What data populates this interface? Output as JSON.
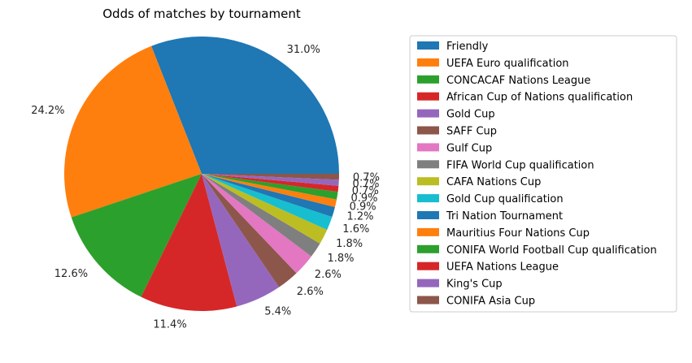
{
  "chart_data": {
    "type": "pie",
    "title": "Odds of matches by tournament",
    "start_angle_deg": 0,
    "direction": "counterclockwise",
    "legend_placement": "right",
    "slices": [
      {
        "label": "Friendly",
        "value": 31.0,
        "pct_label": "31.0%",
        "color": "#1f77b4"
      },
      {
        "label": "UEFA Euro qualification",
        "value": 24.2,
        "pct_label": "24.2%",
        "color": "#ff7f0e"
      },
      {
        "label": "CONCACAF Nations League",
        "value": 12.6,
        "pct_label": "12.6%",
        "color": "#2ca02c"
      },
      {
        "label": "African Cup of Nations qualification",
        "value": 11.4,
        "pct_label": "11.4%",
        "color": "#d62728"
      },
      {
        "label": "Gold Cup",
        "value": 5.4,
        "pct_label": "5.4%",
        "color": "#9467bd"
      },
      {
        "label": "SAFF Cup",
        "value": 2.6,
        "pct_label": "2.6%",
        "color": "#8c564b"
      },
      {
        "label": "Gulf Cup",
        "value": 2.6,
        "pct_label": "2.6%",
        "color": "#e377c2"
      },
      {
        "label": "FIFA World Cup qualification",
        "value": 1.8,
        "pct_label": "1.8%",
        "color": "#7f7f7f"
      },
      {
        "label": "CAFA Nations Cup",
        "value": 1.8,
        "pct_label": "1.8%",
        "color": "#bcbd22"
      },
      {
        "label": "Gold Cup qualification",
        "value": 1.6,
        "pct_label": "1.6%",
        "color": "#17becf"
      },
      {
        "label": "Tri Nation Tournament",
        "value": 1.2,
        "pct_label": "1.2%",
        "color": "#1f77b4"
      },
      {
        "label": "Mauritius Four Nations Cup",
        "value": 0.9,
        "pct_label": "0.9%",
        "color": "#ff7f0e"
      },
      {
        "label": "CONIFA World Football Cup qualification",
        "value": 0.9,
        "pct_label": "0.9%",
        "color": "#2ca02c"
      },
      {
        "label": "UEFA Nations League",
        "value": 0.7,
        "pct_label": "0.7%",
        "color": "#d62728"
      },
      {
        "label": "King's Cup",
        "value": 0.7,
        "pct_label": "0.7%",
        "color": "#9467bd"
      },
      {
        "label": "CONIFA Asia Cup",
        "value": 0.7,
        "pct_label": "0.7%",
        "color": "#8c564b"
      }
    ]
  }
}
